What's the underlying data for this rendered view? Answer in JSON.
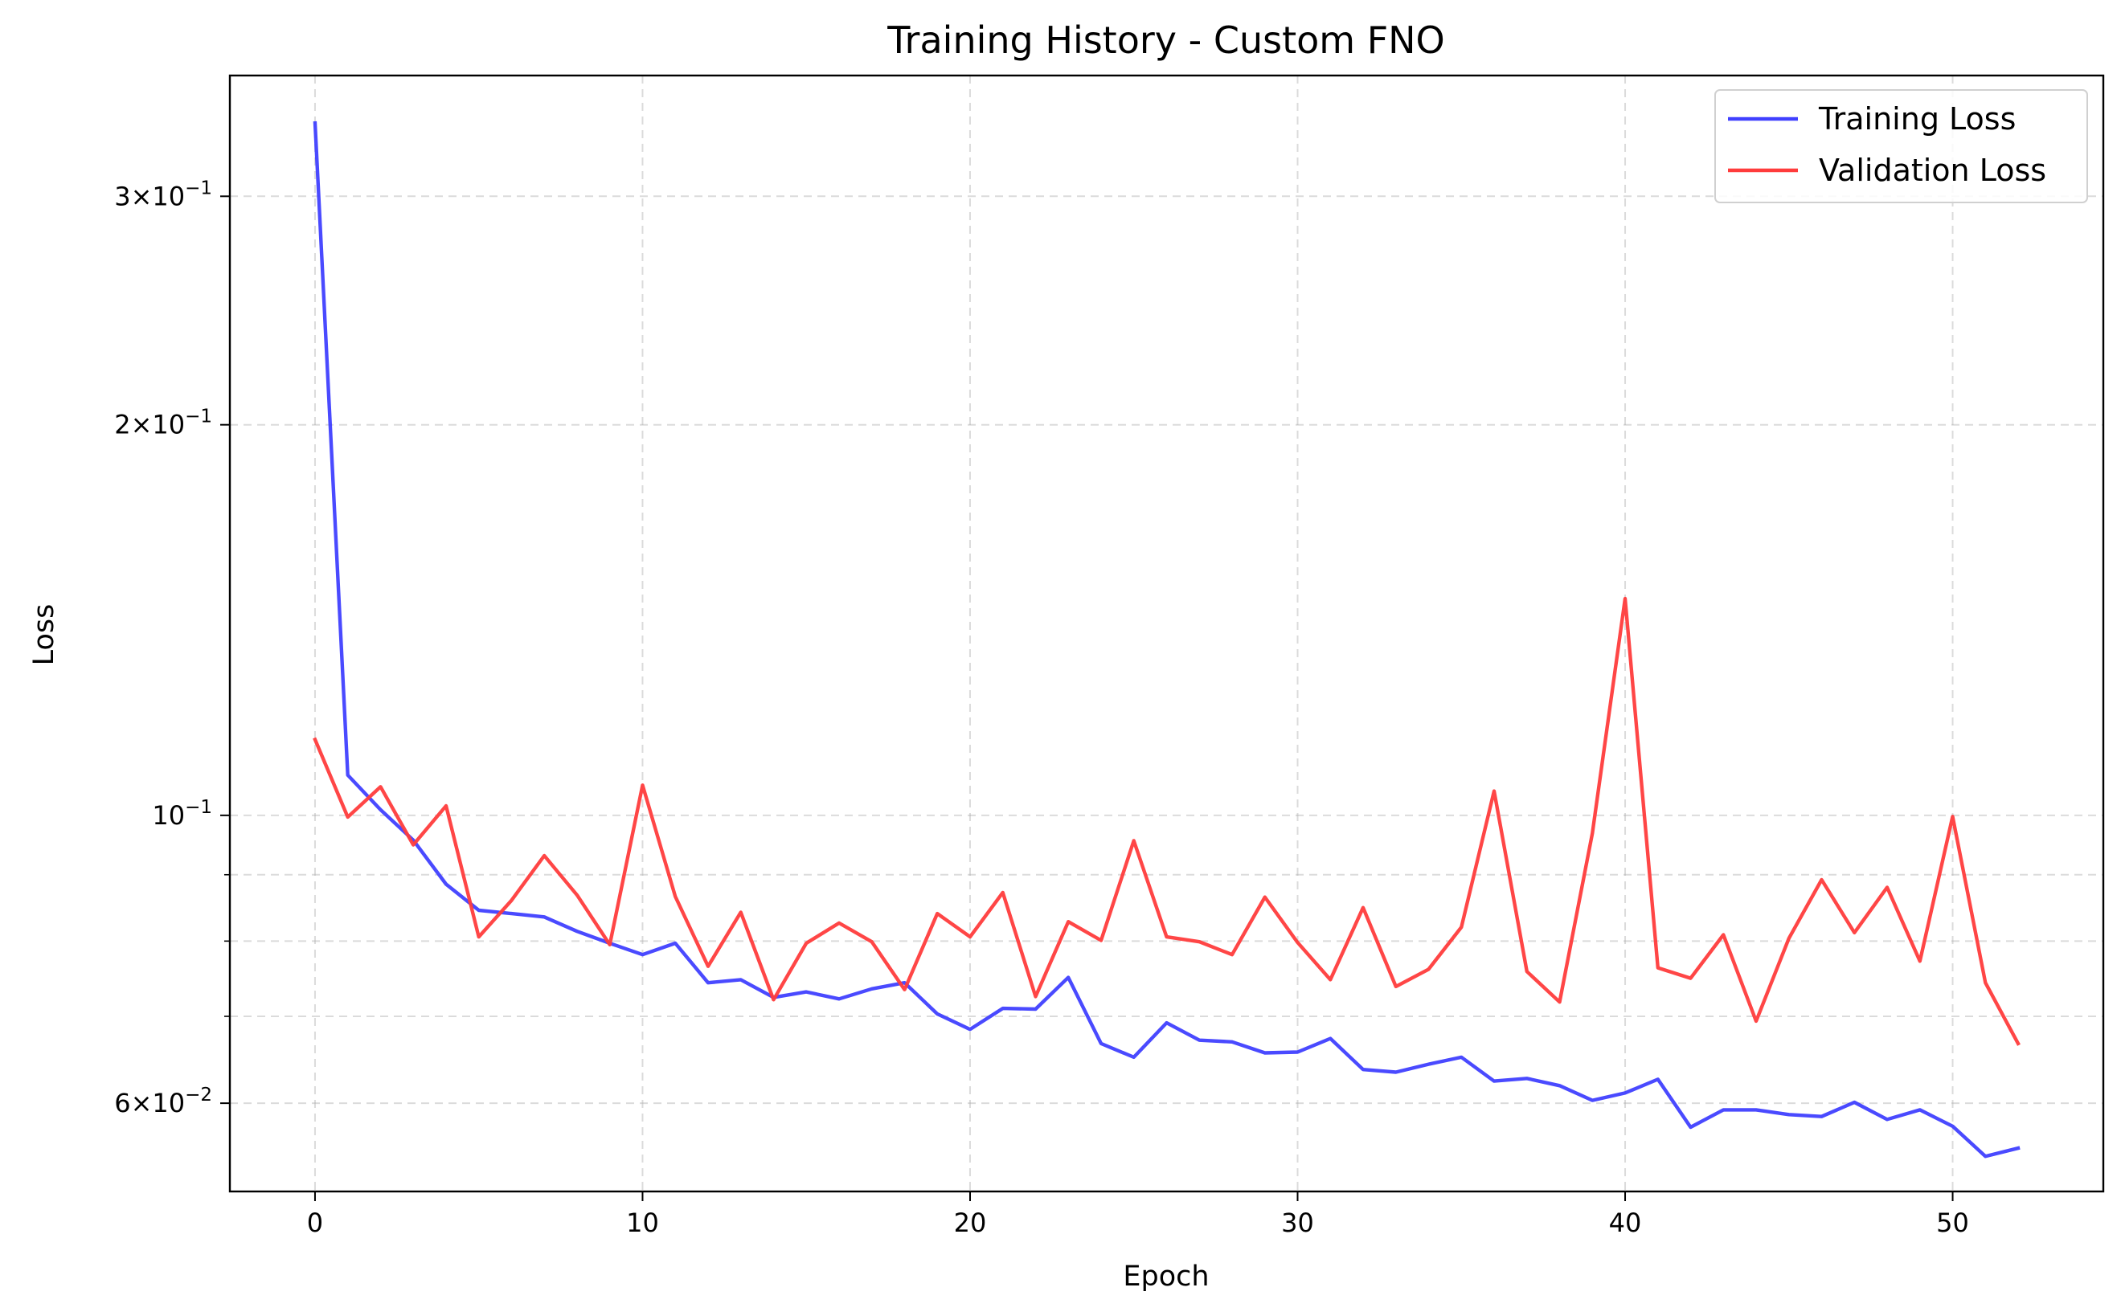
{
  "chart_data": {
    "type": "line",
    "title": "Training History - Custom FNO",
    "xlabel": "Epoch",
    "ylabel": "Loss",
    "yscale": "log",
    "xlim": [
      -2.6,
      54.6
    ],
    "ylim": [
      0.0513,
      0.3717
    ],
    "x_ticks": [
      0,
      10,
      20,
      30,
      40,
      50
    ],
    "x_tick_labels": [
      "0",
      "10",
      "20",
      "30",
      "40",
      "50"
    ],
    "y_major_ticks": [
      {
        "value": 0.06,
        "mantissa": "6",
        "exponent": "−2"
      },
      {
        "value": 0.1,
        "mantissa": "",
        "exponent": "−1"
      },
      {
        "value": 0.2,
        "mantissa": "2",
        "exponent": "−1"
      },
      {
        "value": 0.3,
        "mantissa": "3",
        "exponent": "−1"
      }
    ],
    "y_minor_ticks": [
      0.07,
      0.08,
      0.09
    ],
    "grid": true,
    "legend_position": "top-right",
    "series": [
      {
        "name": "Training Loss",
        "color": "#4040ff",
        "x": [
          0,
          1,
          2,
          3,
          4,
          5,
          6,
          7,
          8,
          9,
          10,
          11,
          12,
          13,
          14,
          15,
          16,
          17,
          18,
          19,
          20,
          21,
          22,
          23,
          24,
          25,
          26,
          27,
          28,
          29,
          30,
          31,
          32,
          33,
          34,
          35,
          36,
          37,
          38,
          39,
          40,
          41,
          42,
          43,
          44,
          45,
          46,
          47,
          48,
          49,
          50,
          51,
          52
        ],
        "values": [
          0.3416,
          0.1074,
          0.101,
          0.0957,
          0.0885,
          0.0845,
          0.084,
          0.0835,
          0.0814,
          0.0797,
          0.0781,
          0.0797,
          0.0743,
          0.0747,
          0.0724,
          0.0731,
          0.0722,
          0.0735,
          0.0743,
          0.0703,
          0.0684,
          0.071,
          0.0709,
          0.075,
          0.0667,
          0.0651,
          0.0692,
          0.0671,
          0.0669,
          0.0656,
          0.0657,
          0.0673,
          0.0637,
          0.0634,
          0.0643,
          0.0651,
          0.0624,
          0.0627,
          0.0619,
          0.0603,
          0.0611,
          0.0626,
          0.0575,
          0.0593,
          0.0593,
          0.0588,
          0.0586,
          0.0601,
          0.0583,
          0.0593,
          0.0576,
          0.0546,
          0.0554
        ]
      },
      {
        "name": "Validation Loss",
        "color": "#ff3c3c",
        "x": [
          0,
          1,
          2,
          3,
          4,
          5,
          6,
          7,
          8,
          9,
          10,
          11,
          12,
          13,
          14,
          15,
          16,
          17,
          18,
          19,
          20,
          21,
          22,
          23,
          24,
          25,
          26,
          27,
          28,
          29,
          30,
          31,
          32,
          33,
          34,
          35,
          36,
          37,
          38,
          39,
          40,
          41,
          42,
          43,
          44,
          45,
          46,
          47,
          48,
          49,
          50,
          51,
          52
        ],
        "values": [
          0.1144,
          0.0997,
          0.1052,
          0.0949,
          0.1017,
          0.0806,
          0.086,
          0.0931,
          0.0868,
          0.0795,
          0.1055,
          0.0866,
          0.0765,
          0.0842,
          0.0721,
          0.0797,
          0.0826,
          0.0799,
          0.0734,
          0.084,
          0.0806,
          0.0872,
          0.0725,
          0.0828,
          0.0801,
          0.0956,
          0.0806,
          0.0799,
          0.0781,
          0.0865,
          0.0798,
          0.0747,
          0.0849,
          0.0738,
          0.0761,
          0.082,
          0.1044,
          0.0758,
          0.0718,
          0.0969,
          0.1469,
          0.0763,
          0.0749,
          0.0809,
          0.0694,
          0.0804,
          0.0892,
          0.0812,
          0.088,
          0.0772,
          0.0998,
          0.0743,
          0.0667
        ]
      }
    ]
  }
}
